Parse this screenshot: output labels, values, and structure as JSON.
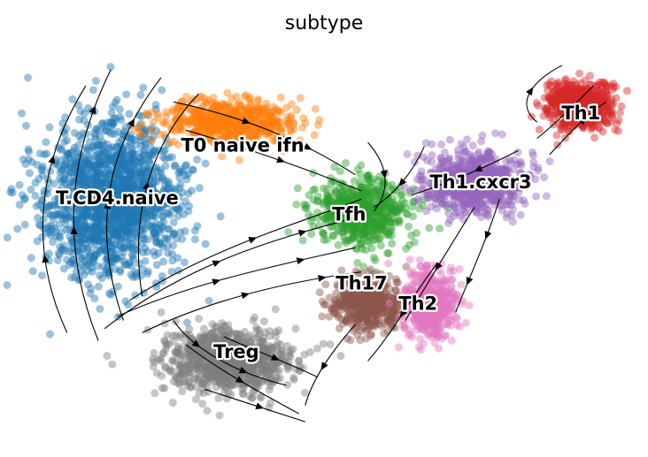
{
  "chart_data": {
    "type": "scatter",
    "title": "subtype",
    "xlabel": "",
    "ylabel": "",
    "grid": false,
    "axes_visible": false,
    "overlay": "velocity streamlines with black arrowheads",
    "legend": "on data (cluster labels)",
    "x_range": [
      0,
      100
    ],
    "y_range": [
      0,
      100
    ],
    "clusters": [
      {
        "name": "T.CD4.naive",
        "color": "#1f77b4",
        "center": [
          16,
          60
        ],
        "spread": [
          10,
          18
        ],
        "n": 1500,
        "label_pos": [
          17,
          60
        ]
      },
      {
        "name": "T0 naive ifn",
        "color": "#ff7f0e",
        "center": [
          35,
          79
        ],
        "spread": [
          9,
          5
        ],
        "n": 600,
        "label_pos": [
          37,
          73
        ]
      },
      {
        "name": "Tfh",
        "color": "#2ca02c",
        "center": [
          56,
          57
        ],
        "spread": [
          7,
          7
        ],
        "n": 600,
        "label_pos": [
          54,
          56
        ]
      },
      {
        "name": "Th1.cxcr3",
        "color": "#9467bd",
        "center": [
          74,
          64
        ],
        "spread": [
          7,
          7
        ],
        "n": 700,
        "label_pos": [
          75,
          64
        ]
      },
      {
        "name": "Th1",
        "color": "#d62728",
        "center": [
          91,
          83
        ],
        "spread": [
          5,
          5
        ],
        "n": 650,
        "label_pos": [
          91,
          81
        ]
      },
      {
        "name": "Th17",
        "color": "#8c564b",
        "center": [
          57,
          34
        ],
        "spread": [
          5,
          6
        ],
        "n": 450,
        "label_pos": [
          56,
          39
        ]
      },
      {
        "name": "Th2",
        "color": "#e377c2",
        "center": [
          67,
          34
        ],
        "spread": [
          4,
          8
        ],
        "n": 500,
        "label_pos": [
          65,
          34
        ]
      },
      {
        "name": "Treg",
        "color": "#7f7f7f",
        "center": [
          35,
          20
        ],
        "spread": [
          9,
          7
        ],
        "n": 900,
        "label_pos": [
          36,
          22
        ]
      }
    ],
    "streamlines": [
      {
        "points": [
          [
            9,
            27
          ],
          [
            3,
            47
          ],
          [
            4,
            68
          ],
          [
            12,
            88
          ]
        ],
        "arrows": [
          0.3,
          0.7
        ]
      },
      {
        "points": [
          [
            14,
            25
          ],
          [
            8,
            48
          ],
          [
            9,
            70
          ],
          [
            16,
            92
          ]
        ],
        "arrows": [
          0.4,
          0.85
        ]
      },
      {
        "points": [
          [
            18,
            30
          ],
          [
            13,
            52
          ],
          [
            15,
            72
          ],
          [
            24,
            90
          ]
        ],
        "arrows": [
          0.45,
          0.8
        ]
      },
      {
        "points": [
          [
            21,
            36
          ],
          [
            19,
            55
          ],
          [
            22,
            73
          ],
          [
            30,
            86
          ]
        ],
        "arrows": [
          0.5
        ]
      },
      {
        "points": [
          [
            15,
            28
          ],
          [
            28,
            44
          ],
          [
            42,
            50
          ],
          [
            54,
            55
          ]
        ],
        "arrows": [
          0.45,
          0.8
        ]
      },
      {
        "points": [
          [
            17,
            31
          ],
          [
            30,
            40
          ],
          [
            44,
            44
          ],
          [
            55,
            48
          ]
        ],
        "arrows": [
          0.4,
          0.75
        ]
      },
      {
        "points": [
          [
            19,
            35
          ],
          [
            32,
            48
          ],
          [
            46,
            54
          ],
          [
            56,
            60
          ]
        ],
        "arrows": [
          0.5
        ]
      },
      {
        "points": [
          [
            21,
            27
          ],
          [
            33,
            36
          ],
          [
            46,
            40
          ],
          [
            56,
            42
          ]
        ],
        "arrows": [
          0.45,
          0.8
        ]
      },
      {
        "points": [
          [
            26,
            84
          ],
          [
            38,
            80
          ],
          [
            47,
            74
          ],
          [
            55,
            66
          ]
        ],
        "arrows": [
          0.35,
          0.7
        ]
      },
      {
        "points": [
          [
            28,
            77
          ],
          [
            39,
            72
          ],
          [
            48,
            67
          ],
          [
            56,
            62
          ]
        ],
        "arrows": [
          0.5
        ]
      },
      {
        "points": [
          [
            57,
            74
          ],
          [
            61,
            67
          ],
          [
            60,
            61
          ],
          [
            58,
            57
          ]
        ],
        "arrows": [
          0.4
        ]
      },
      {
        "points": [
          [
            66,
            73
          ],
          [
            64,
            66
          ],
          [
            61,
            61
          ],
          [
            58,
            58
          ]
        ],
        "arrows": [
          0.5
        ]
      },
      {
        "points": [
          [
            81,
            72
          ],
          [
            76,
            68
          ],
          [
            70,
            64
          ],
          [
            64,
            61
          ]
        ],
        "arrows": [
          0.4,
          0.8
        ]
      },
      {
        "points": [
          [
            84,
            79
          ],
          [
            80,
            84
          ],
          [
            84,
            90
          ],
          [
            88,
            93
          ]
        ],
        "arrows": [
          0.5
        ]
      },
      {
        "points": [
          [
            86,
            71
          ],
          [
            89,
            76
          ],
          [
            92,
            81
          ],
          [
            95,
            84
          ]
        ],
        "arrows": [
          0.6
        ]
      },
      {
        "points": [
          [
            84,
            75
          ],
          [
            88,
            80
          ],
          [
            91,
            85
          ],
          [
            93,
            88
          ]
        ],
        "arrows": [
          0.5
        ]
      },
      {
        "points": [
          [
            78,
            60
          ],
          [
            76,
            50
          ],
          [
            73,
            40
          ],
          [
            71,
            32
          ]
        ],
        "arrows": [
          0.3,
          0.7
        ]
      },
      {
        "points": [
          [
            74,
            58
          ],
          [
            70,
            48
          ],
          [
            66,
            38
          ],
          [
            63,
            30
          ]
        ],
        "arrows": [
          0.5
        ]
      },
      {
        "points": [
          [
            68,
            44
          ],
          [
            64,
            36
          ],
          [
            61,
            27
          ],
          [
            57,
            20
          ]
        ],
        "arrows": [
          0.5
        ]
      },
      {
        "points": [
          [
            26,
            30
          ],
          [
            29,
            23
          ],
          [
            36,
            17
          ],
          [
            44,
            14
          ]
        ],
        "arrows": [
          0.3,
          0.7
        ]
      },
      {
        "points": [
          [
            28,
            24
          ],
          [
            33,
            18
          ],
          [
            40,
            12
          ],
          [
            46,
            7
          ]
        ],
        "arrows": [
          0.5
        ]
      },
      {
        "points": [
          [
            31,
            13
          ],
          [
            37,
            10
          ],
          [
            43,
            7
          ],
          [
            47,
            5
          ]
        ],
        "arrows": [
          0.5
        ]
      },
      {
        "points": [
          [
            34,
            26
          ],
          [
            40,
            22
          ],
          [
            45,
            19
          ],
          [
            49,
            16
          ]
        ],
        "arrows": [
          0.5
        ]
      },
      {
        "points": [
          [
            55,
            29
          ],
          [
            51,
            22
          ],
          [
            48,
            15
          ],
          [
            47,
            9
          ]
        ],
        "arrows": [
          0.5
        ]
      }
    ]
  }
}
